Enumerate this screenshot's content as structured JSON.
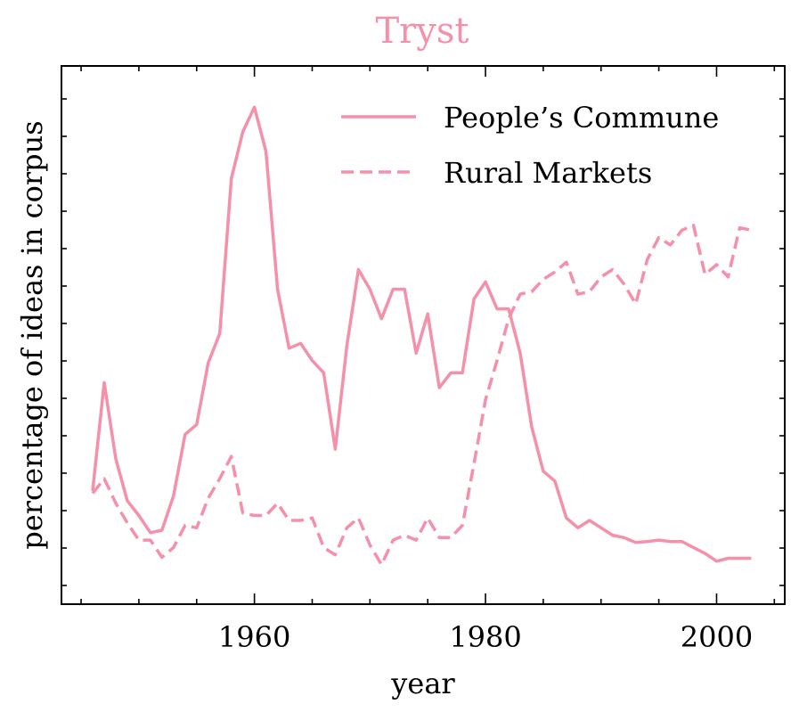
{
  "chart_data": {
    "type": "line",
    "title": "Tryst",
    "xlabel": "year",
    "ylabel": "percentage of ideas in corpus",
    "xlim": [
      1943.3,
      2005.9
    ],
    "ylim": [
      0,
      100
    ],
    "x_ticks": [
      1960,
      1980,
      2000
    ],
    "x_tick_labels": [
      "1960",
      "1980",
      "2000"
    ],
    "y_tick_labels_shown": false,
    "legend": "top-right",
    "color": "#f590aa",
    "series": [
      {
        "name": "People’s Commune",
        "style": "solid",
        "x": [
          1946,
          1947,
          1948,
          1949,
          1950,
          1951,
          1952,
          1953,
          1954,
          1955,
          1956,
          1957,
          1958,
          1959,
          1960,
          1961,
          1962,
          1963,
          1964,
          1965,
          1966,
          1967,
          1968,
          1969,
          1970,
          1971,
          1972,
          1973,
          1974,
          1975,
          1976,
          1977,
          1978,
          1979,
          1980,
          1981,
          1982,
          1983,
          1984,
          1985,
          1986,
          1987,
          1988,
          1989,
          1990,
          1991,
          1992,
          1993,
          1994,
          1995,
          1996,
          1997,
          1998,
          1999,
          2000,
          2001,
          2002,
          2003
        ],
        "values": [
          18.5,
          40.5,
          25,
          16.5,
          13.5,
          10,
          10.5,
          17.5,
          30,
          32,
          44.5,
          50.5,
          82,
          91.5,
          96.5,
          87.5,
          59.5,
          47.5,
          48.5,
          45,
          42.5,
          27,
          48,
          63.5,
          59.5,
          53.5,
          59.5,
          59.5,
          46.5,
          54.5,
          39.5,
          42.5,
          42.5,
          57.5,
          61,
          55.5,
          55.5,
          46.5,
          31.5,
          22.5,
          20.5,
          13,
          11,
          12.5,
          11,
          9.5,
          9,
          8,
          8.2,
          8.5,
          8.2,
          8.2,
          7,
          5.8,
          4.2,
          4.8,
          4.8,
          4.8
        ]
      },
      {
        "name": "Rural Markets",
        "style": "dashed",
        "x": [
          1946,
          1947,
          1948,
          1949,
          1950,
          1951,
          1952,
          1953,
          1954,
          1955,
          1956,
          1957,
          1958,
          1959,
          1960,
          1961,
          1962,
          1963,
          1964,
          1965,
          1966,
          1967,
          1968,
          1969,
          1970,
          1971,
          1972,
          1973,
          1974,
          1975,
          1976,
          1977,
          1978,
          1979,
          1980,
          1981,
          1982,
          1983,
          1984,
          1985,
          1986,
          1987,
          1988,
          1989,
          1990,
          1991,
          1992,
          1993,
          1994,
          1995,
          1996,
          1997,
          1998,
          1999,
          2000,
          2001,
          2002,
          2003
        ],
        "values": [
          18,
          21,
          16,
          12,
          8.5,
          8.5,
          5,
          7,
          11.5,
          11,
          17,
          21,
          25.5,
          14,
          13.5,
          13.5,
          16,
          12.5,
          12.5,
          13,
          7,
          5.5,
          11,
          13,
          7.5,
          3.5,
          8.5,
          9.5,
          8.5,
          13,
          9,
          9,
          11.5,
          24,
          37,
          45,
          53.5,
          58.5,
          59,
          61.5,
          63,
          65,
          58.5,
          59,
          62,
          63.5,
          60.5,
          56.5,
          65.5,
          70,
          68.5,
          71.5,
          72.5,
          62.5,
          64.5,
          62,
          72,
          71.5
        ]
      }
    ]
  }
}
